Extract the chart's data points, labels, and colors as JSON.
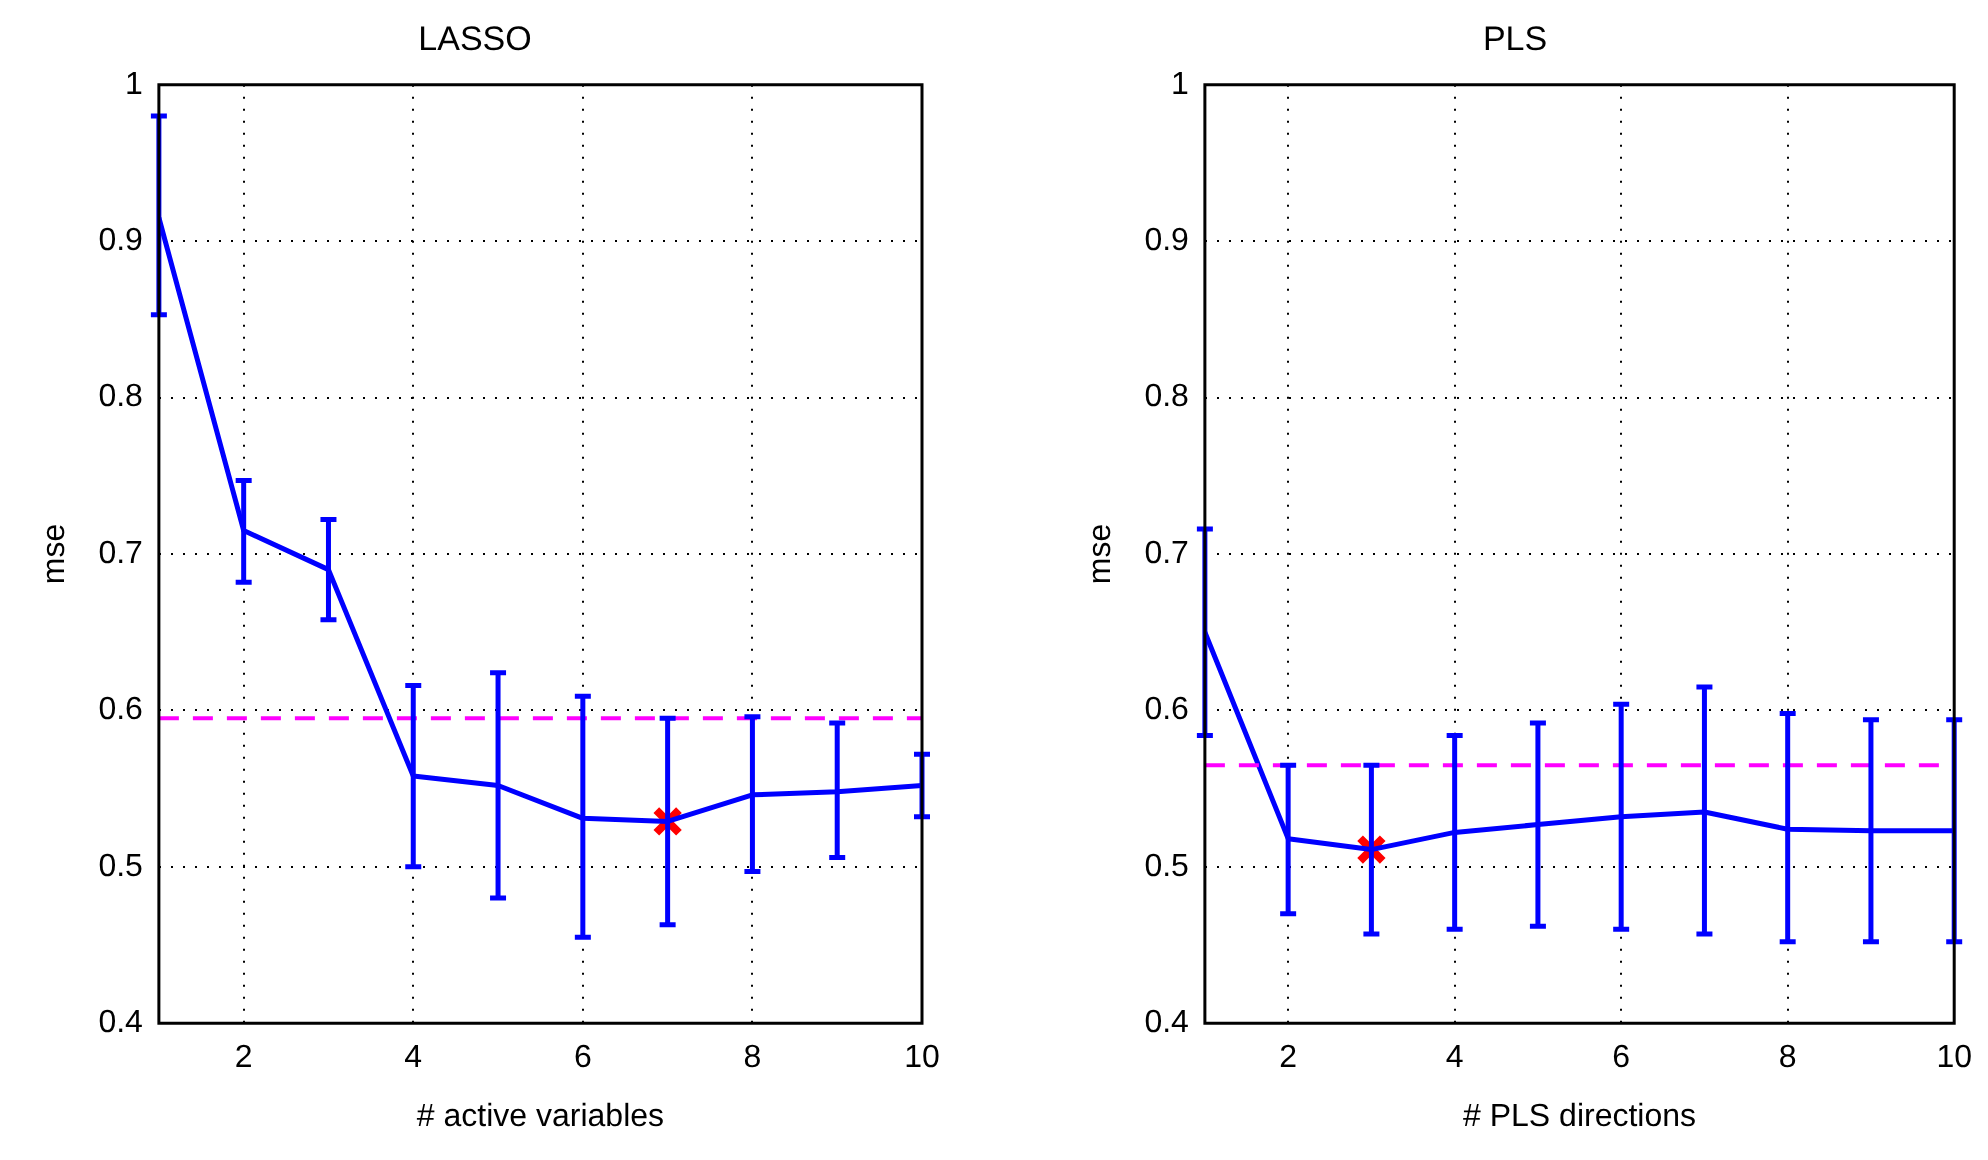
{
  "chart_data": [
    {
      "type": "line",
      "title": "LASSO",
      "xlabel": "# active variables",
      "ylabel": "mse",
      "x": [
        1,
        2,
        3,
        4,
        5,
        6,
        7,
        8,
        9,
        10
      ],
      "xlim": [
        1,
        10
      ],
      "xticks": [
        2,
        4,
        6,
        8,
        10
      ],
      "ylim": [
        0.4,
        1
      ],
      "yticks": [
        0.4,
        0.5,
        0.6,
        0.7,
        0.8,
        0.9,
        1
      ],
      "grid": true,
      "series": [
        {
          "type": "line",
          "color": "#0000ff",
          "marker": "none",
          "values": [
            0.915,
            0.715,
            0.69,
            0.558,
            0.552,
            0.531,
            0.529,
            0.546,
            0.548,
            0.552
          ],
          "errors": [
            [
              0.853,
              0.98
            ],
            [
              0.682,
              0.747
            ],
            [
              0.658,
              0.722
            ],
            [
              0.5,
              0.616
            ],
            [
              0.48,
              0.624
            ],
            [
              0.455,
              0.609
            ],
            [
              0.463,
              0.595
            ],
            [
              0.497,
              0.596
            ],
            [
              0.506,
              0.592
            ],
            [
              0.532,
              0.572
            ]
          ]
        },
        {
          "type": "scatter",
          "color": "#ff0000",
          "marker": "cross",
          "x": [
            7
          ],
          "values": [
            0.529
          ]
        }
      ],
      "ref_lines": [
        {
          "axis": "y",
          "value": 0.595,
          "color": "#ff00ff",
          "line_style": "dashed"
        }
      ]
    },
    {
      "type": "line",
      "title": "PLS",
      "xlabel": "# PLS directions",
      "ylabel": "mse",
      "x": [
        1,
        2,
        3,
        4,
        5,
        6,
        7,
        8,
        9,
        10
      ],
      "xlim": [
        1,
        10
      ],
      "xticks": [
        2,
        4,
        6,
        8,
        10
      ],
      "ylim": [
        0.4,
        1
      ],
      "yticks": [
        0.4,
        0.5,
        0.6,
        0.7,
        0.8,
        0.9,
        1
      ],
      "grid": true,
      "series": [
        {
          "type": "line",
          "color": "#0000ff",
          "marker": "none",
          "values": [
            0.65,
            0.518,
            0.511,
            0.522,
            0.527,
            0.532,
            0.535,
            0.524,
            0.523,
            0.523
          ],
          "errors": [
            [
              0.584,
              0.716
            ],
            [
              0.47,
              0.565
            ],
            [
              0.457,
              0.565
            ],
            [
              0.46,
              0.584
            ],
            [
              0.462,
              0.592
            ],
            [
              0.46,
              0.604
            ],
            [
              0.457,
              0.615
            ],
            [
              0.452,
              0.598
            ],
            [
              0.452,
              0.594
            ],
            [
              0.452,
              0.594
            ]
          ]
        },
        {
          "type": "scatter",
          "color": "#ff0000",
          "marker": "cross",
          "x": [
            3
          ],
          "values": [
            0.511
          ]
        }
      ],
      "ref_lines": [
        {
          "axis": "y",
          "value": 0.565,
          "color": "#ff00ff",
          "line_style": "dashed"
        }
      ]
    }
  ]
}
